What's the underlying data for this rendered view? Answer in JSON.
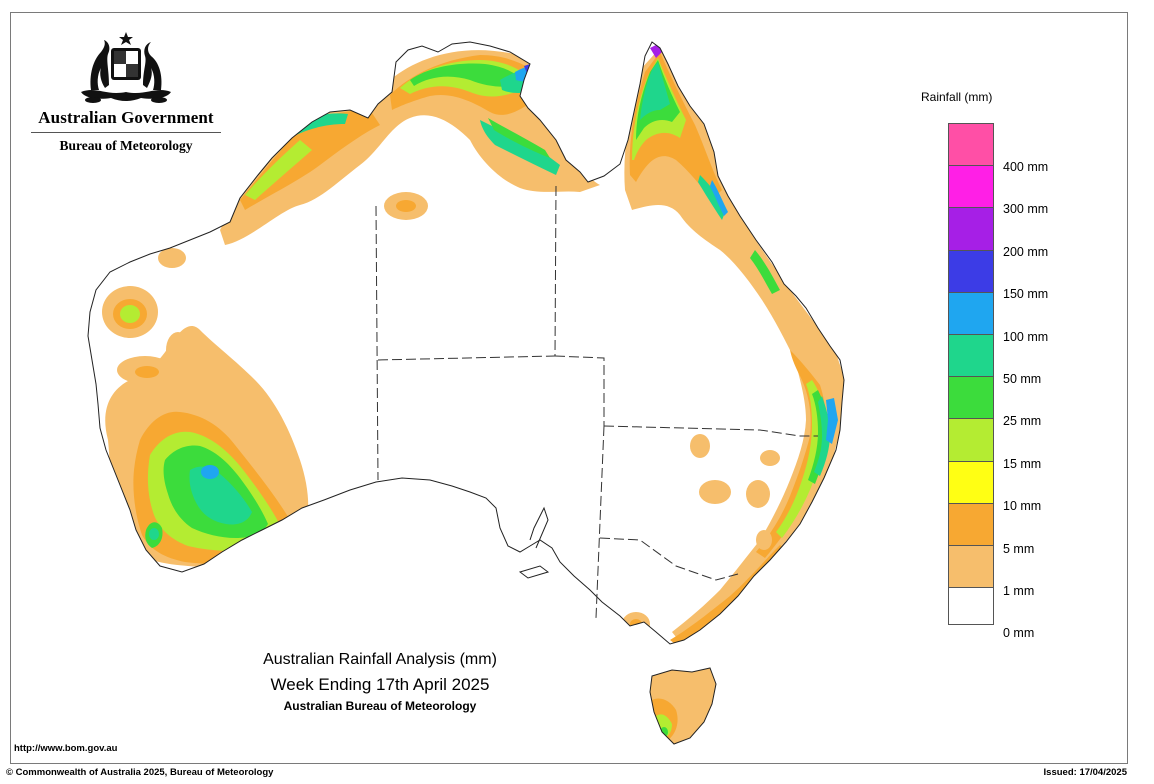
{
  "branding": {
    "government": "Australian Government",
    "bureau": "Bureau of Meteorology",
    "crest_icon": "commonwealth-coat-of-arms-icon"
  },
  "map_title": {
    "line1": "Australian Rainfall Analysis (mm)",
    "line2": "Week Ending 17th April 2025",
    "line3": "Australian Bureau of Meteorology"
  },
  "legend": {
    "title": "Rainfall (mm)",
    "classes": [
      {
        "label": "400 mm",
        "color": "#ff4fa6"
      },
      {
        "label": "300 mm",
        "color": "#ff1fe6"
      },
      {
        "label": "200 mm",
        "color": "#a61fe6"
      },
      {
        "label": "150 mm",
        "color": "#3c3ce6"
      },
      {
        "label": "100 mm",
        "color": "#1fa6f0"
      },
      {
        "label": "50 mm",
        "color": "#1fd68c"
      },
      {
        "label": "25 mm",
        "color": "#3cdc3c"
      },
      {
        "label": "15 mm",
        "color": "#b4ec32"
      },
      {
        "label": "10 mm",
        "color": "#ffff14"
      },
      {
        "label": "5 mm",
        "color": "#f7a832"
      },
      {
        "label": "1 mm",
        "color": "#f6be6c"
      },
      {
        "label": "0 mm",
        "color": "#ffffff"
      }
    ]
  },
  "footer": {
    "url": "http://www.bom.gov.au",
    "copyright": "© Commonwealth of Australia 2025, Bureau of Meteorology",
    "issued": "Issued: 17/04/2025"
  }
}
